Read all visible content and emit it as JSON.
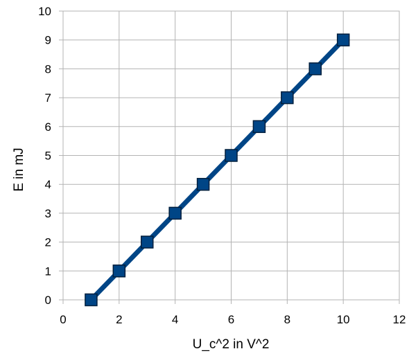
{
  "chart_data": {
    "type": "line",
    "title": "",
    "xlabel": "U_c^2 in V^2",
    "ylabel": "E in mJ",
    "xlim": [
      0,
      12
    ],
    "ylim": [
      0,
      10
    ],
    "x_ticks": [
      0,
      2,
      4,
      6,
      8,
      10,
      12
    ],
    "y_ticks": [
      0,
      1,
      2,
      3,
      4,
      5,
      6,
      7,
      8,
      9,
      10
    ],
    "grid": true,
    "legend": "none",
    "series": [
      {
        "x": [
          1,
          2,
          3,
          4,
          5,
          6,
          7,
          8,
          9,
          10
        ],
        "values": [
          0,
          1,
          2,
          3,
          4,
          5,
          6,
          7,
          8,
          9
        ],
        "color": "#004586",
        "marker": "square"
      }
    ]
  }
}
